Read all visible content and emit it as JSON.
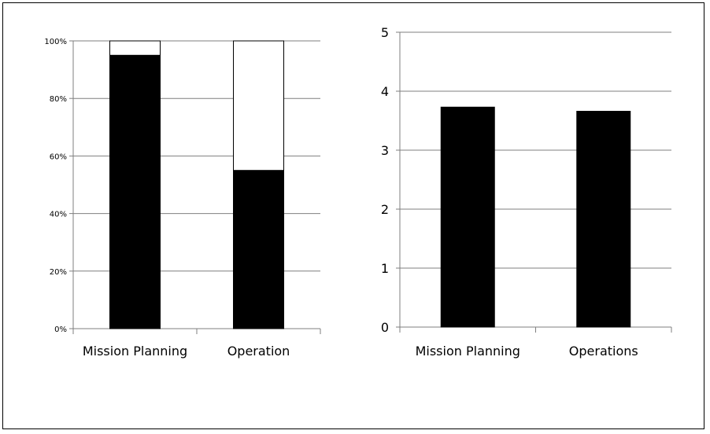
{
  "chart_data": [
    {
      "type": "bar",
      "stacked": true,
      "categories": [
        "Mission Planning",
        "Operation"
      ],
      "series": [
        {
          "values": [
            95,
            55
          ],
          "color": "#000000"
        },
        {
          "values": [
            5,
            45
          ],
          "color": "#ffffff"
        }
      ],
      "yticks": [
        "0%",
        "20%",
        "40%",
        "60%",
        "80%",
        "100%"
      ],
      "ylim": [
        0,
        100
      ],
      "grid": true
    },
    {
      "type": "bar",
      "categories": [
        "Mission Planning",
        "Operations"
      ],
      "values": [
        3.73,
        3.66
      ],
      "bar_color": "#000000",
      "yticks": [
        "0",
        "1",
        "2",
        "3",
        "4",
        "5"
      ],
      "ylim": [
        0,
        5
      ],
      "grid": true
    }
  ]
}
